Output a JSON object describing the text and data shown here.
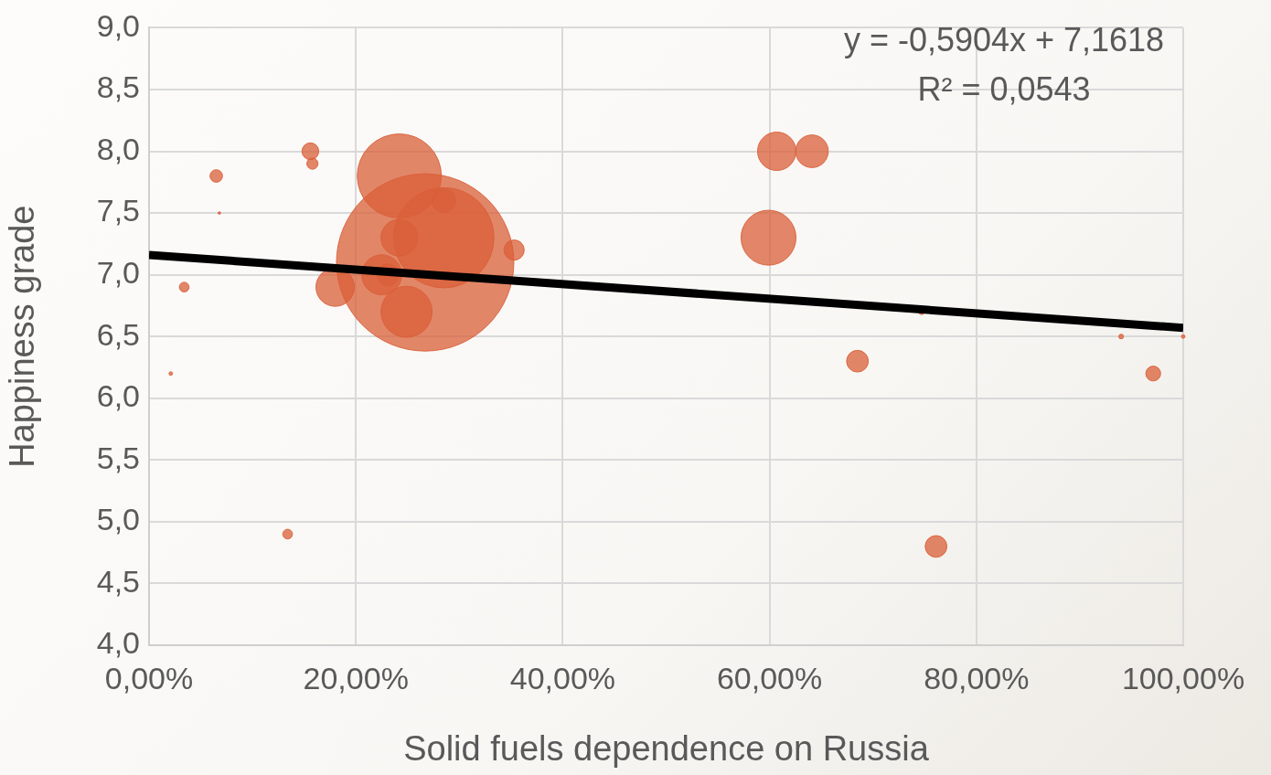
{
  "chart_data": {
    "type": "bubble",
    "xlabel": "Solid fuels dependence on Russia",
    "ylabel": "Happiness grade",
    "annotations": [
      "y = -0,5904x + 7,1618",
      "R² = 0,0543"
    ],
    "xlim": [
      0,
      100
    ],
    "xticks": [
      {
        "value": 0,
        "label": "0,00%"
      },
      {
        "value": 20,
        "label": "20,00%"
      },
      {
        "value": 40,
        "label": "40,00%"
      },
      {
        "value": 60,
        "label": "60,00%"
      },
      {
        "value": 80,
        "label": "80,00%"
      },
      {
        "value": 100,
        "label": "100,00%"
      }
    ],
    "ylim": [
      4,
      9
    ],
    "yticks": [
      {
        "value": 4,
        "label": "4,0"
      },
      {
        "value": 4.5,
        "label": "4,5"
      },
      {
        "value": 5,
        "label": "5,0"
      },
      {
        "value": 5.5,
        "label": "5,5"
      },
      {
        "value": 6,
        "label": "6,0"
      },
      {
        "value": 6.5,
        "label": "6,5"
      },
      {
        "value": 7,
        "label": "7,0"
      },
      {
        "value": 7.5,
        "label": "7,5"
      },
      {
        "value": 8,
        "label": "8,0"
      },
      {
        "value": 8.5,
        "label": "8,5"
      },
      {
        "value": 9,
        "label": "9,0"
      }
    ],
    "grid": true,
    "legend": false,
    "series": [
      {
        "color": "#d95f38",
        "x": [
          2.1,
          3.4,
          6.5,
          6.8,
          13.4,
          15.6,
          15.8,
          18.0,
          22.5,
          23.1,
          24.2,
          24.2,
          24.9,
          26.7,
          28.5,
          28.5,
          35.3,
          59.9,
          60.7,
          64.1,
          68.5,
          74.7,
          76.1,
          94.0,
          97.1,
          100
        ],
        "values": [
          6.2,
          6.9,
          7.8,
          7.5,
          4.9,
          8.0,
          7.9,
          6.9,
          7.0,
          7.0,
          7.8,
          7.3,
          6.7,
          7.1,
          7.3,
          7.6,
          7.2,
          7.3,
          8.0,
          8.0,
          6.3,
          6.7,
          4.8,
          6.5,
          6.2,
          6.5
        ],
        "sizes": [
          0.0004,
          0.003,
          0.005,
          0.0002,
          0.003,
          0.009,
          0.004,
          0.047,
          0.051,
          0.015,
          0.225,
          0.043,
          0.083,
          1,
          0.32,
          0.018,
          0.013,
          0.096,
          0.047,
          0.034,
          0.015,
          0.001,
          0.015,
          0.0007,
          0.007,
          0.0004
        ]
      },
      {
        "type": "line",
        "color": "#000000",
        "x": [
          0,
          100
        ],
        "values": [
          7.16,
          6.57
        ]
      }
    ]
  }
}
